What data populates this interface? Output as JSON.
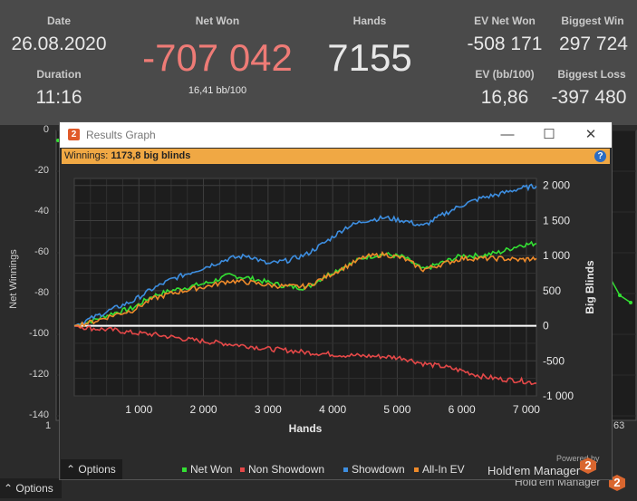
{
  "stats": {
    "date_label": "Date",
    "date": "26.08.2020",
    "duration_label": "Duration",
    "duration": "11:16",
    "netwon_label": "Net Won",
    "netwon": "-707 042",
    "bb100": "16,41 bb/100",
    "hands_label": "Hands",
    "hands": "7155",
    "evnet_label": "EV Net Won",
    "evnet": "-508 171",
    "biggestwin_label": "Biggest Win",
    "biggestwin": "297 724",
    "ev_label": "EV (bb/100)",
    "ev": "16,86",
    "biggestloss_label": "Biggest Loss",
    "biggestloss": "-397 480",
    "negative_color": "#ee7b76"
  },
  "background": {
    "ylabel": "Net Winnings",
    "yticks": [
      "0",
      "-20",
      "-40",
      "-60",
      "-80",
      "-100",
      "-120",
      "-140"
    ],
    "xtick_left": "1",
    "xtick_right": "63",
    "options_label": "Options",
    "brand": "Hold'em Manager"
  },
  "dialog": {
    "title": "Results Graph",
    "logo": "2",
    "banner_label": "Winnings:",
    "banner_value": "1173,8 big blinds",
    "help": "?",
    "options_label": "Options",
    "powered": "Powered by",
    "brand": "Hold'em Manager",
    "minimize_icon": "minimize-icon",
    "maximize_icon": "maximize-icon",
    "close_icon": "close-icon"
  },
  "chart_data": {
    "type": "line",
    "xlabel": "Hands",
    "ylabel": "Big Blinds",
    "xlim": [
      0,
      7155
    ],
    "ylim": [
      -1000,
      2100
    ],
    "xticks": [
      "1 000",
      "2 000",
      "3 000",
      "4 000",
      "5 000",
      "6 000",
      "7 000"
    ],
    "yticks": [
      "2 000",
      "1 500",
      "1 000",
      "500",
      "0",
      "-500",
      "-1 000"
    ],
    "grid": true,
    "legend_position": "bottom",
    "x": [
      0,
      300,
      600,
      900,
      1200,
      1500,
      1800,
      2100,
      2400,
      2700,
      3000,
      3300,
      3600,
      3900,
      4200,
      4500,
      4800,
      5100,
      5400,
      5700,
      6000,
      6300,
      6600,
      6900,
      7155
    ],
    "series": [
      {
        "name": "Net Won",
        "color": "#33e033",
        "values": [
          0,
          80,
          180,
          250,
          420,
          500,
          560,
          620,
          720,
          680,
          620,
          560,
          540,
          720,
          850,
          980,
          1020,
          980,
          800,
          900,
          1000,
          1000,
          1050,
          1150,
          1174
        ]
      },
      {
        "name": "Non Showdown",
        "color": "#e44848",
        "values": [
          0,
          -40,
          -60,
          -100,
          -120,
          -160,
          -200,
          -230,
          -260,
          -290,
          -330,
          -350,
          -380,
          -400,
          -420,
          -430,
          -440,
          -460,
          -540,
          -580,
          -640,
          -720,
          -760,
          -780,
          -820
        ]
      },
      {
        "name": "Showdown",
        "color": "#3d8ee0",
        "values": [
          0,
          120,
          240,
          350,
          520,
          660,
          760,
          860,
          960,
          1000,
          880,
          930,
          1020,
          1200,
          1400,
          1500,
          1540,
          1500,
          1420,
          1580,
          1720,
          1820,
          1880,
          1960,
          1990
        ]
      },
      {
        "name": "All-In EV",
        "color": "#ee8a2a",
        "values": [
          0,
          60,
          150,
          220,
          380,
          460,
          520,
          570,
          640,
          620,
          580,
          560,
          560,
          700,
          840,
          980,
          1020,
          960,
          800,
          880,
          960,
          960,
          960,
          940,
          960
        ]
      }
    ]
  }
}
